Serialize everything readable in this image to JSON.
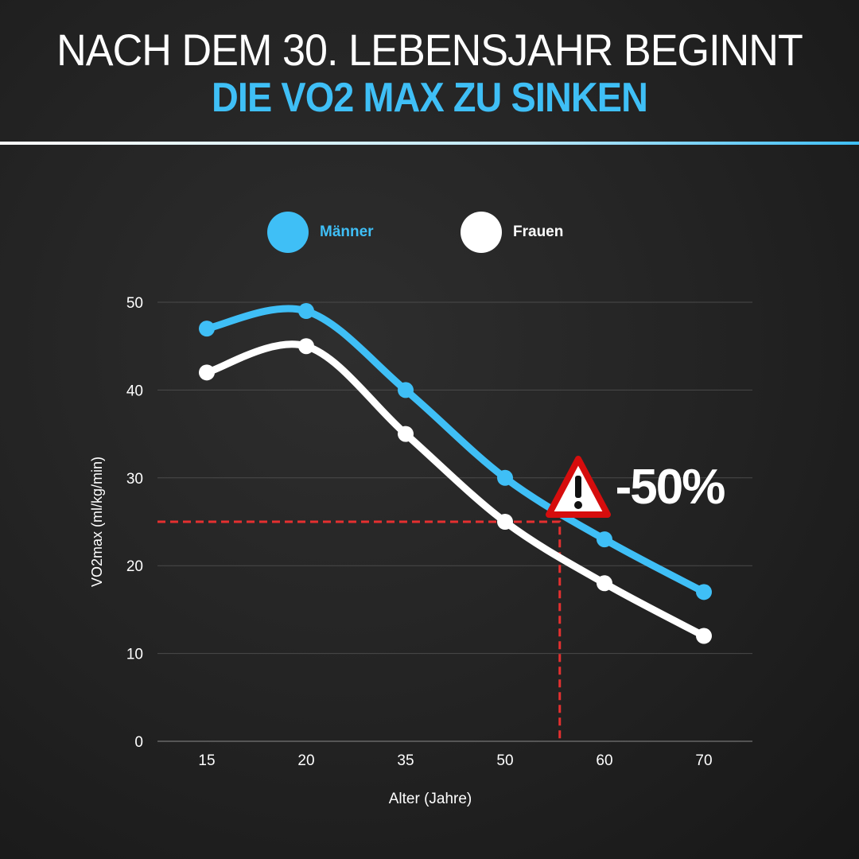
{
  "title_line1": "NACH DEM 30. LEBENSJAHR BEGINNT",
  "title_line2": "DIE VO2 MAX ZU SINKEN",
  "callout": {
    "text": "-50%",
    "icon": "warning-triangle-icon",
    "marker_age_fraction_between_50_60": 0.55,
    "marker_value": 25
  },
  "chart_data": {
    "type": "line",
    "categories": [
      "15",
      "20",
      "35",
      "50",
      "60",
      "70"
    ],
    "series": [
      {
        "name": "Männer",
        "color": "#3fbff6",
        "values": [
          47,
          49,
          40,
          30,
          23,
          17
        ]
      },
      {
        "name": "Frauen",
        "color": "#ffffff",
        "values": [
          42,
          45,
          35,
          25,
          18,
          12
        ]
      }
    ],
    "xlabel": "Alter (Jahre)",
    "ylabel": "VO2max (ml/kg/min)",
    "ylim": [
      0,
      50
    ],
    "yticks": [
      "0",
      "10",
      "20",
      "30",
      "40",
      "50"
    ],
    "grid": true,
    "legend": "top-center"
  }
}
